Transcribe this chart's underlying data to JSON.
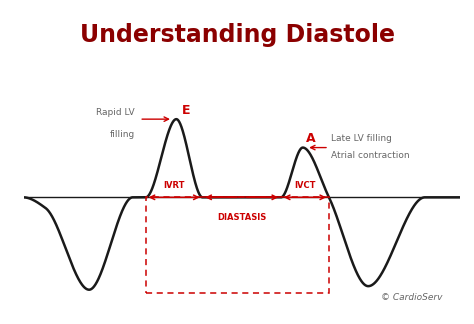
{
  "title": "Understanding Diastole",
  "title_color": "#8B0000",
  "title_fontsize": 17,
  "bg_color": "#ffffff",
  "panel_bg": "#ffffff",
  "panel_border": "#cccccc",
  "waveform_color": "#1a1a1a",
  "red_color": "#cc0000",
  "annotation_color": "#666666",
  "copyright_text": "© CardioServ",
  "label_E": "E",
  "label_A": "A",
  "label_IVRT": "IVRT",
  "label_IVCT": "IVCT",
  "label_DIASTASIS": "DIASTASIS",
  "label_rapid_line1": "Rapid LV",
  "label_rapid_line2": "filling",
  "label_late_line1": "Late LV filling",
  "label_late_line2": "Atrial contraction"
}
